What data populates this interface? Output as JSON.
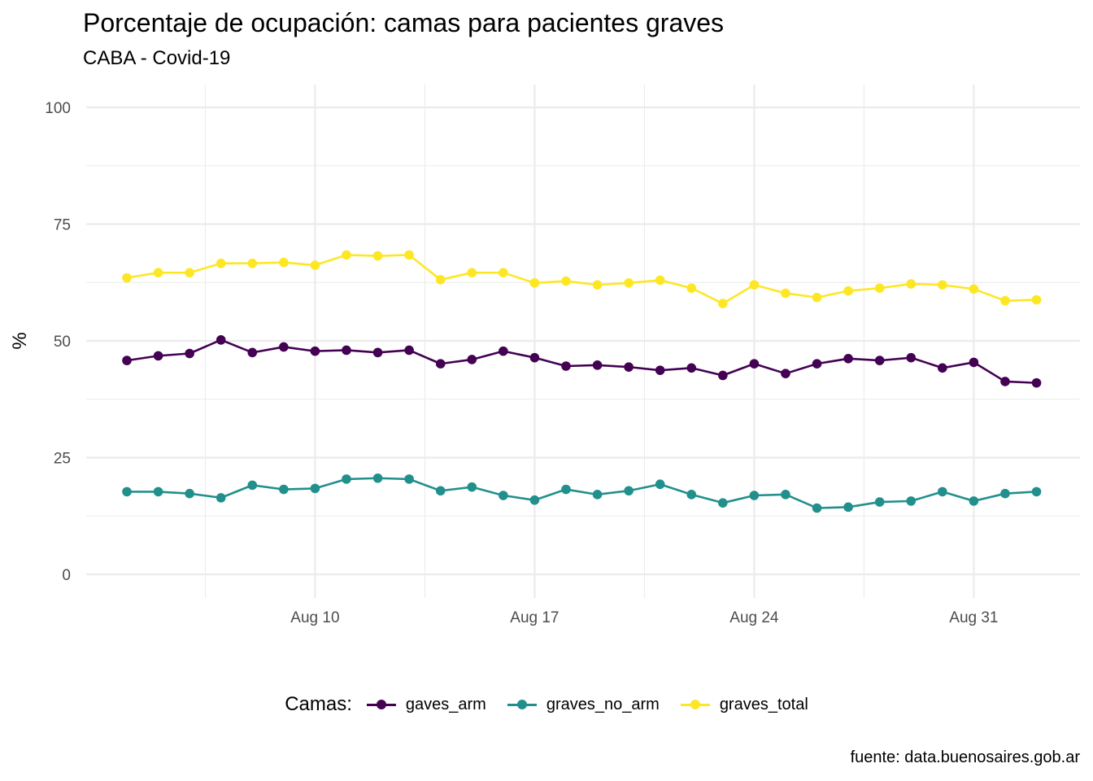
{
  "title": "Porcentaje de ocupación: camas para pacientes graves",
  "subtitle": "CABA - Covid-19",
  "caption": "fuente: data.buenosaires.gob.ar",
  "legend": {
    "title": "Camas:"
  },
  "colors": {
    "gaves_arm": "#440154",
    "graves_no_arm": "#21908C",
    "graves_total": "#FDE725",
    "grid": "#ebebeb"
  },
  "chart_data": {
    "type": "line",
    "title": "Porcentaje de ocupación: camas para pacientes graves",
    "subtitle": "CABA - Covid-19",
    "xlabel": "",
    "ylabel": "%",
    "ylim": [
      0,
      100
    ],
    "yticks": [
      0,
      25,
      50,
      75,
      100
    ],
    "xticks": [
      "Aug 10",
      "Aug 17",
      "Aug 24",
      "Aug 31"
    ],
    "x": [
      "2020-08-04",
      "2020-08-05",
      "2020-08-06",
      "2020-08-07",
      "2020-08-08",
      "2020-08-09",
      "2020-08-10",
      "2020-08-11",
      "2020-08-12",
      "2020-08-13",
      "2020-08-14",
      "2020-08-15",
      "2020-08-16",
      "2020-08-17",
      "2020-08-18",
      "2020-08-19",
      "2020-08-20",
      "2020-08-21",
      "2020-08-22",
      "2020-08-23",
      "2020-08-24",
      "2020-08-25",
      "2020-08-26",
      "2020-08-27",
      "2020-08-28",
      "2020-08-29",
      "2020-08-30",
      "2020-08-31",
      "2020-09-01",
      "2020-09-02",
      "2020-09-03"
    ],
    "series": [
      {
        "name": "gaves_arm",
        "values": [
          45.8,
          46.8,
          47.3,
          50.2,
          47.5,
          48.7,
          47.8,
          48.0,
          47.5,
          48.0,
          45.1,
          46.0,
          47.8,
          46.4,
          44.6,
          44.8,
          44.4,
          43.7,
          44.2,
          42.6,
          45.1,
          43.0,
          45.1,
          46.2,
          45.8,
          46.4,
          44.2,
          45.4,
          41.3,
          41.0,
          null
        ]
      },
      {
        "name": "graves_no_arm",
        "values": [
          17.7,
          17.7,
          17.3,
          16.4,
          19.1,
          18.2,
          18.4,
          20.4,
          20.6,
          20.4,
          17.9,
          18.7,
          16.9,
          15.9,
          18.2,
          17.1,
          17.9,
          19.3,
          17.1,
          15.3,
          16.9,
          17.1,
          14.2,
          14.4,
          15.5,
          15.7,
          17.7,
          15.7,
          17.3,
          17.7,
          null
        ]
      },
      {
        "name": "graves_total",
        "values": [
          63.5,
          64.6,
          64.6,
          66.6,
          66.6,
          66.8,
          66.2,
          68.4,
          68.2,
          68.4,
          63.1,
          64.6,
          64.6,
          62.4,
          62.8,
          62.0,
          62.4,
          63.0,
          61.3,
          58.0,
          62.0,
          60.2,
          59.3,
          60.7,
          61.3,
          62.2,
          62.0,
          61.1,
          58.6,
          58.8,
          null
        ]
      }
    ]
  }
}
